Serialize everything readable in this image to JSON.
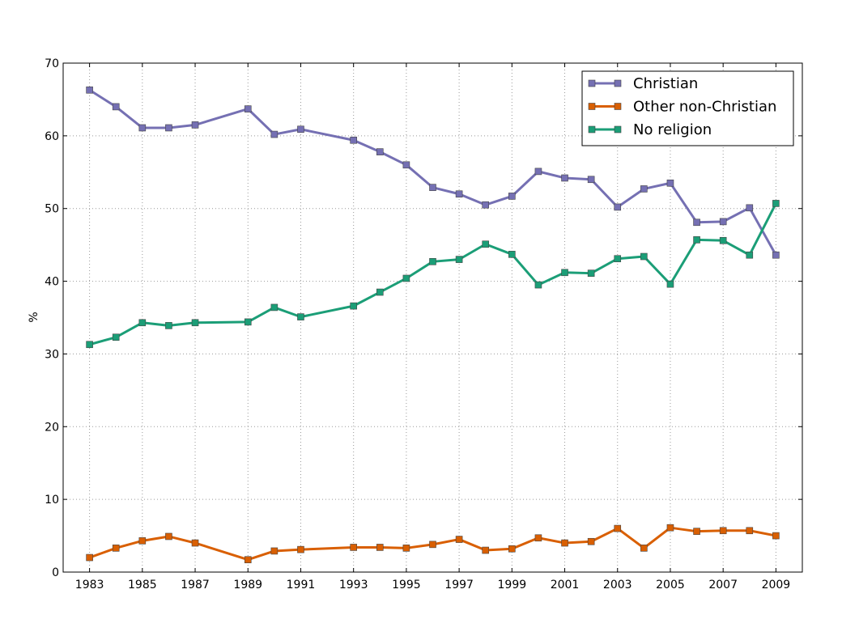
{
  "chart_data": {
    "type": "line",
    "title": "",
    "xlabel": "",
    "ylabel": "%",
    "xlim": [
      1982,
      2010
    ],
    "ylim": [
      0,
      70
    ],
    "grid": true,
    "legend_placement": "top-right",
    "x_ticks": [
      "1983",
      "1985",
      "1987",
      "1989",
      "1991",
      "1993",
      "1995",
      "1997",
      "1999",
      "2001",
      "2003",
      "2005",
      "2007",
      "2009"
    ],
    "y_ticks": [
      "0",
      "10",
      "20",
      "30",
      "40",
      "50",
      "60",
      "70"
    ],
    "x": [
      1983,
      1984,
      1985,
      1986,
      1987,
      1989,
      1990,
      1991,
      1993,
      1994,
      1995,
      1996,
      1997,
      1998,
      1999,
      2000,
      2001,
      2002,
      2003,
      2004,
      2005,
      2006,
      2007,
      2008,
      2009
    ],
    "series": [
      {
        "name": "Christian",
        "color": "#7570b3",
        "marker": "square",
        "values": [
          66.3,
          64.0,
          61.1,
          61.1,
          61.5,
          63.7,
          60.2,
          60.9,
          59.4,
          57.8,
          56.0,
          52.9,
          52.0,
          50.5,
          51.7,
          55.1,
          54.2,
          54.0,
          50.2,
          52.7,
          53.5,
          48.1,
          48.2,
          50.1,
          43.6
        ]
      },
      {
        "name": "Other non-Christian",
        "color": "#d95f02",
        "marker": "square",
        "values": [
          2.0,
          3.3,
          4.3,
          4.9,
          4.0,
          1.7,
          2.9,
          3.1,
          3.4,
          3.4,
          3.3,
          3.8,
          4.5,
          3.0,
          3.2,
          4.7,
          4.0,
          4.2,
          6.0,
          3.3,
          6.1,
          5.6,
          5.7,
          5.7,
          5.0
        ]
      },
      {
        "name": "No religion",
        "color": "#1b9e77",
        "marker": "square",
        "values": [
          31.3,
          32.3,
          34.3,
          33.9,
          34.3,
          34.4,
          36.4,
          35.1,
          36.6,
          38.5,
          40.4,
          42.7,
          43.0,
          45.1,
          43.7,
          39.5,
          41.2,
          41.1,
          43.1,
          43.4,
          39.6,
          45.7,
          45.6,
          43.6,
          50.7
        ]
      }
    ]
  }
}
